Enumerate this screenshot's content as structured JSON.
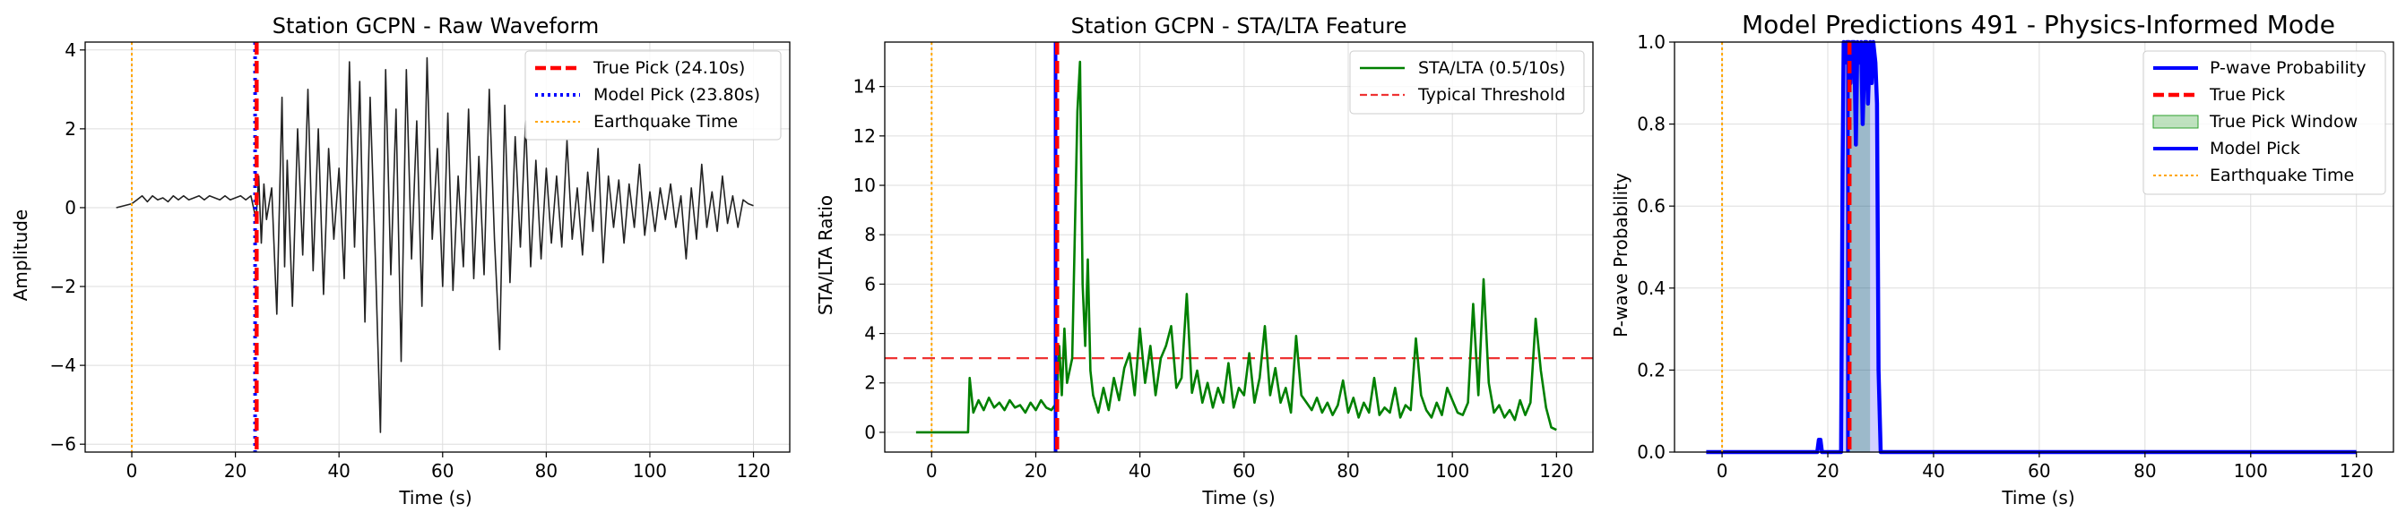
{
  "chart_data": [
    {
      "type": "line",
      "title": "Station GCPN - Raw Waveform",
      "xlabel": "Time (s)",
      "ylabel": "Amplitude",
      "xlim": [
        -9,
        127
      ],
      "ylim": [
        -6.2,
        4.2
      ],
      "xticks": [
        0,
        20,
        40,
        60,
        80,
        100,
        120
      ],
      "yticks": [
        -6,
        -4,
        -2,
        0,
        2,
        4
      ],
      "grid": true,
      "legend_position": "top-right",
      "series": [
        {
          "name": "",
          "color": "#222222",
          "x": [
            -3,
            0,
            1,
            2,
            3,
            4,
            5,
            6,
            7,
            8,
            9,
            10,
            11,
            12,
            13,
            14,
            15,
            16,
            17,
            18,
            19,
            20,
            21,
            22,
            23,
            24,
            24.5,
            25,
            25.5,
            26,
            27,
            28,
            29,
            29.5,
            30,
            31,
            32,
            33,
            34,
            35,
            36,
            37,
            38,
            39,
            40,
            41,
            42,
            43,
            44,
            45,
            46,
            47,
            48,
            49,
            50,
            51,
            52,
            53,
            54,
            55,
            56,
            57,
            58,
            59,
            60,
            61,
            62,
            63,
            64,
            65,
            66,
            67,
            68,
            69,
            70,
            71,
            72,
            73,
            74,
            75,
            76,
            77,
            78,
            79,
            80,
            81,
            82,
            83,
            84,
            85,
            86,
            87,
            88,
            89,
            90,
            91,
            92,
            93,
            94,
            95,
            96,
            97,
            98,
            99,
            100,
            101,
            102,
            103,
            104,
            105,
            106,
            107,
            108,
            109,
            110,
            111,
            112,
            113,
            114,
            115,
            116,
            117,
            118,
            119,
            120
          ],
          "y": [
            0,
            0.1,
            0.2,
            0.3,
            0.15,
            0.3,
            0.2,
            0.25,
            0.15,
            0.3,
            0.2,
            0.3,
            0.2,
            0.25,
            0.3,
            0.2,
            0.3,
            0.25,
            0.2,
            0.3,
            0.2,
            0.25,
            0.3,
            0.2,
            0.3,
            -0.3,
            0.8,
            -0.9,
            0.6,
            -0.3,
            0.5,
            -2.7,
            2.8,
            -1.5,
            1.2,
            -2.5,
            2.0,
            -1.2,
            3.0,
            -1.6,
            2.0,
            -2.2,
            1.5,
            -0.8,
            1.0,
            -1.8,
            3.7,
            -1.0,
            3.2,
            -2.9,
            2.8,
            -1.2,
            -5.7,
            3.5,
            -1.7,
            2.5,
            -3.9,
            3.5,
            -1.3,
            2.2,
            -2.5,
            3.8,
            -0.8,
            1.5,
            -2.0,
            2.4,
            -2.1,
            0.8,
            -1.5,
            2.5,
            -1.8,
            1.3,
            -1.7,
            3.0,
            -0.8,
            -3.6,
            2.6,
            -1.9,
            1.8,
            -1.0,
            2.2,
            -1.5,
            1.2,
            -1.3,
            1.0,
            -0.9,
            0.8,
            -1.0,
            1.7,
            -0.8,
            0.5,
            -1.2,
            0.9,
            -0.6,
            1.5,
            -1.4,
            0.8,
            -0.5,
            0.7,
            -0.9,
            0.6,
            -0.5,
            1.1,
            -0.7,
            0.4,
            -0.6,
            0.5,
            -0.3,
            0.6,
            -0.5,
            0.3,
            -1.3,
            0.5,
            -0.8,
            1.1,
            -0.5,
            0.4,
            -0.6,
            0.8,
            -0.4,
            0.3,
            -0.5,
            0.2,
            0.1,
            0.05
          ]
        }
      ],
      "vlines": [
        {
          "name": "True Pick (24.10s)",
          "x": 24.1,
          "color": "#ff0000",
          "style": "dashed"
        },
        {
          "name": "Model Pick (23.80s)",
          "x": 23.8,
          "color": "#0000ff",
          "style": "dotted"
        },
        {
          "name": "Earthquake Time",
          "x": 0,
          "color": "#ffa500",
          "style": "dotted-thin"
        }
      ]
    },
    {
      "type": "line",
      "title": "Station GCPN - STA/LTA Feature",
      "xlabel": "Time (s)",
      "ylabel": "STA/LTA Ratio",
      "xlim": [
        -9,
        127
      ],
      "ylim": [
        -0.8,
        15.8
      ],
      "xticks": [
        0,
        20,
        40,
        60,
        80,
        100,
        120
      ],
      "yticks": [
        0,
        2,
        4,
        6,
        8,
        10,
        12,
        14
      ],
      "grid": true,
      "legend_position": "top-right",
      "series": [
        {
          "name": "STA/LTA (0.5/10s)",
          "color": "#008000",
          "x": [
            -3,
            7,
            7.3,
            8,
            9,
            10,
            11,
            12,
            13,
            14,
            15,
            16,
            17,
            18,
            19,
            20,
            21,
            22,
            23,
            24,
            24.5,
            25,
            25.5,
            26,
            27,
            28,
            28.5,
            29,
            29.5,
            30,
            30.5,
            31,
            32,
            33,
            34,
            35,
            36,
            37,
            38,
            39,
            40,
            41,
            42,
            43,
            44,
            45,
            46,
            47,
            48,
            49,
            50,
            51,
            52,
            53,
            54,
            55,
            56,
            57,
            58,
            59,
            60,
            61,
            62,
            63,
            64,
            65,
            66,
            67,
            68,
            69,
            70,
            71,
            72,
            73,
            74,
            75,
            76,
            77,
            78,
            79,
            80,
            81,
            82,
            83,
            84,
            85,
            86,
            87,
            88,
            89,
            90,
            91,
            92,
            93,
            94,
            95,
            96,
            97,
            98,
            99,
            100,
            101,
            102,
            103,
            104,
            105,
            106,
            107,
            108,
            109,
            110,
            111,
            112,
            113,
            114,
            115,
            116,
            117,
            118,
            119,
            120
          ],
          "y": [
            0,
            0,
            2.2,
            0.8,
            1.3,
            0.9,
            1.4,
            1.0,
            1.2,
            0.9,
            1.3,
            1.0,
            1.1,
            0.8,
            1.2,
            0.9,
            1.3,
            1.0,
            0.9,
            1.2,
            3.5,
            1.5,
            4.2,
            2.0,
            3.0,
            13.0,
            15.0,
            6.0,
            3.5,
            7.0,
            2.5,
            1.5,
            0.8,
            1.8,
            0.9,
            2.2,
            1.3,
            2.6,
            3.2,
            1.5,
            4.2,
            2.0,
            3.5,
            1.5,
            3.0,
            3.5,
            4.3,
            1.8,
            2.2,
            5.6,
            1.6,
            2.5,
            1.2,
            2.0,
            1.0,
            1.8,
            1.2,
            2.8,
            1.0,
            1.8,
            1.5,
            3.2,
            1.2,
            2.2,
            4.3,
            1.5,
            2.6,
            1.2,
            1.8,
            0.8,
            3.9,
            1.5,
            1.2,
            0.9,
            1.4,
            0.8,
            1.2,
            0.7,
            1.1,
            2.1,
            0.8,
            1.4,
            0.6,
            1.2,
            0.8,
            2.2,
            0.7,
            1.0,
            0.8,
            1.8,
            0.6,
            1.1,
            0.9,
            3.8,
            1.5,
            0.9,
            0.6,
            1.2,
            0.7,
            1.8,
            1.3,
            0.8,
            0.7,
            1.2,
            5.2,
            1.5,
            6.2,
            2.0,
            0.8,
            1.1,
            0.6,
            0.9,
            0.5,
            1.3,
            0.7,
            1.2,
            4.6,
            2.5,
            1.0,
            0.2,
            0.1
          ]
        }
      ],
      "hlines": [
        {
          "name": "Typical Threshold",
          "y": 3.0,
          "color": "#ee3333",
          "style": "dashed"
        }
      ],
      "vlines": [
        {
          "name": "",
          "x": 24.1,
          "color": "#ff0000",
          "style": "dashed"
        },
        {
          "name": "",
          "x": 23.8,
          "color": "#0000ff",
          "style": "solid"
        },
        {
          "name": "",
          "x": 0,
          "color": "#ffa500",
          "style": "dotted-thin"
        }
      ]
    },
    {
      "type": "line",
      "title": "Model Predictions 491 - Physics-Informed Mode",
      "xlabel": "Time (s)",
      "ylabel": "P-wave Probability",
      "xlim": [
        -9,
        127
      ],
      "ylim": [
        0,
        1
      ],
      "xticks": [
        0,
        20,
        40,
        60,
        80,
        100,
        120
      ],
      "yticks": [
        0.0,
        0.2,
        0.4,
        0.6,
        0.8,
        1.0
      ],
      "grid": true,
      "legend_position": "top-right",
      "series": [
        {
          "name": "P-wave Probability",
          "color": "#0000ff",
          "x": [
            -3,
            18,
            18.3,
            18.6,
            18.9,
            22.5,
            22.8,
            23.0,
            23.3,
            23.6,
            24.0,
            24.3,
            24.6,
            25.0,
            25.3,
            25.6,
            26.0,
            26.3,
            26.6,
            27.0,
            27.3,
            27.6,
            28.0,
            28.3,
            28.6,
            29.0,
            29.3,
            29.6,
            30.0,
            120
          ],
          "y": [
            0,
            0,
            0.03,
            0.03,
            0,
            0,
            0.7,
            1.0,
            0.95,
            1.0,
            1.0,
            0.9,
            1.0,
            1.0,
            0.75,
            1.0,
            0.95,
            1.0,
            0.8,
            1.0,
            1.0,
            0.85,
            1.0,
            0.9,
            1.0,
            0.95,
            0.85,
            0.2,
            0,
            0
          ]
        }
      ],
      "bands": [
        {
          "name": "True Pick Window",
          "x0": 24.0,
          "x1": 28.0,
          "color": "#2ca02c",
          "opacity": 0.3
        }
      ],
      "vlines": [
        {
          "name": "True Pick",
          "x": 24.1,
          "color": "#ff0000",
          "style": "dashed"
        },
        {
          "name": "Model Pick",
          "x": 23.8,
          "color": "#0000ff",
          "style": "solid"
        },
        {
          "name": "Earthquake Time",
          "x": 0,
          "color": "#ffa500",
          "style": "dotted-thin"
        }
      ]
    }
  ],
  "legends": [
    [
      {
        "label": "True Pick (24.10s)",
        "color": "#ff0000",
        "kind": "dashed-thick"
      },
      {
        "label": "Model Pick (23.80s)",
        "color": "#0000ff",
        "kind": "dotted-thick"
      },
      {
        "label": "Earthquake Time",
        "color": "#ffa500",
        "kind": "dotted-thin"
      }
    ],
    [
      {
        "label": "STA/LTA (0.5/10s)",
        "color": "#008000",
        "kind": "solid"
      },
      {
        "label": "Typical Threshold",
        "color": "#ee3333",
        "kind": "dashed"
      }
    ],
    [
      {
        "label": "P-wave Probability",
        "color": "#0000ff",
        "kind": "solid-thick"
      },
      {
        "label": "True Pick",
        "color": "#ff0000",
        "kind": "dashed-thick"
      },
      {
        "label": "True Pick Window",
        "color": "#2ca02c",
        "kind": "patch"
      },
      {
        "label": "Model Pick",
        "color": "#0000ff",
        "kind": "solid-thick"
      },
      {
        "label": "Earthquake Time",
        "color": "#ffa500",
        "kind": "dotted-thin"
      }
    ]
  ]
}
